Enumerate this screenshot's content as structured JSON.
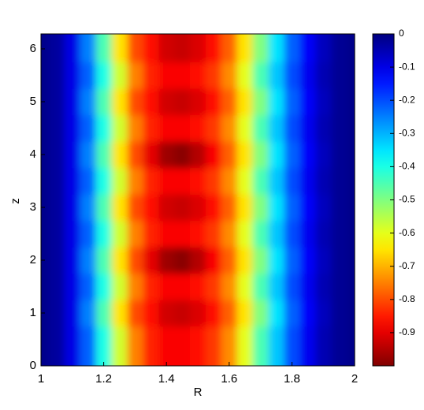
{
  "chart_data": {
    "type": "heatmap",
    "xlabel": "R",
    "ylabel": "z",
    "x": [
      1.0,
      1.05,
      1.1,
      1.15,
      1.2,
      1.25,
      1.3,
      1.35,
      1.4,
      1.45,
      1.5,
      1.55,
      1.6,
      1.65,
      1.7,
      1.75,
      1.8,
      1.85,
      1.9,
      1.95,
      2.0
    ],
    "y": [
      0,
      0.5,
      1,
      1.5,
      2,
      2.5,
      3,
      3.5,
      4,
      4.5,
      5,
      5.5,
      6
    ],
    "z": [
      [
        -0.01,
        -0.03,
        -0.1,
        -0.22,
        -0.4,
        -0.58,
        -0.75,
        -0.84,
        -0.88,
        -0.88,
        -0.86,
        -0.82,
        -0.74,
        -0.6,
        -0.45,
        -0.32,
        -0.2,
        -0.11,
        -0.05,
        -0.02,
        -0.01
      ],
      [
        -0.01,
        -0.03,
        -0.1,
        -0.22,
        -0.4,
        -0.58,
        -0.75,
        -0.84,
        -0.88,
        -0.88,
        -0.86,
        -0.82,
        -0.74,
        -0.6,
        -0.45,
        -0.32,
        -0.2,
        -0.11,
        -0.05,
        -0.02,
        -0.01
      ],
      [
        -0.01,
        -0.03,
        -0.1,
        -0.25,
        -0.45,
        -0.65,
        -0.8,
        -0.86,
        -0.92,
        -0.93,
        -0.91,
        -0.86,
        -0.78,
        -0.65,
        -0.5,
        -0.35,
        -0.22,
        -0.12,
        -0.06,
        -0.02,
        -0.01
      ],
      [
        -0.01,
        -0.03,
        -0.1,
        -0.22,
        -0.4,
        -0.58,
        -0.75,
        -0.84,
        -0.88,
        -0.88,
        -0.86,
        -0.82,
        -0.74,
        -0.6,
        -0.45,
        -0.32,
        -0.2,
        -0.11,
        -0.05,
        -0.02,
        -0.01
      ],
      [
        -0.01,
        -0.03,
        -0.1,
        -0.25,
        -0.45,
        -0.65,
        -0.8,
        -0.9,
        -0.97,
        -0.99,
        -0.95,
        -0.88,
        -0.78,
        -0.65,
        -0.5,
        -0.35,
        -0.22,
        -0.12,
        -0.06,
        -0.02,
        -0.01
      ],
      [
        -0.01,
        -0.03,
        -0.1,
        -0.22,
        -0.4,
        -0.58,
        -0.75,
        -0.84,
        -0.88,
        -0.88,
        -0.86,
        -0.82,
        -0.74,
        -0.6,
        -0.45,
        -0.32,
        -0.2,
        -0.11,
        -0.05,
        -0.02,
        -0.01
      ],
      [
        -0.01,
        -0.03,
        -0.1,
        -0.25,
        -0.45,
        -0.65,
        -0.8,
        -0.86,
        -0.92,
        -0.93,
        -0.91,
        -0.86,
        -0.78,
        -0.65,
        -0.5,
        -0.35,
        -0.22,
        -0.12,
        -0.06,
        -0.02,
        -0.01
      ],
      [
        -0.01,
        -0.03,
        -0.1,
        -0.22,
        -0.4,
        -0.58,
        -0.75,
        -0.84,
        -0.88,
        -0.88,
        -0.86,
        -0.82,
        -0.74,
        -0.6,
        -0.45,
        -0.32,
        -0.2,
        -0.11,
        -0.05,
        -0.02,
        -0.01
      ],
      [
        -0.01,
        -0.03,
        -0.1,
        -0.25,
        -0.45,
        -0.65,
        -0.8,
        -0.9,
        -0.97,
        -0.99,
        -0.95,
        -0.88,
        -0.78,
        -0.65,
        -0.5,
        -0.35,
        -0.22,
        -0.12,
        -0.06,
        -0.02,
        -0.01
      ],
      [
        -0.01,
        -0.03,
        -0.1,
        -0.22,
        -0.4,
        -0.58,
        -0.75,
        -0.84,
        -0.88,
        -0.88,
        -0.86,
        -0.82,
        -0.74,
        -0.6,
        -0.45,
        -0.32,
        -0.2,
        -0.11,
        -0.05,
        -0.02,
        -0.01
      ],
      [
        -0.01,
        -0.03,
        -0.1,
        -0.25,
        -0.45,
        -0.65,
        -0.8,
        -0.86,
        -0.92,
        -0.93,
        -0.91,
        -0.86,
        -0.78,
        -0.65,
        -0.5,
        -0.35,
        -0.22,
        -0.12,
        -0.06,
        -0.02,
        -0.01
      ],
      [
        -0.01,
        -0.03,
        -0.1,
        -0.22,
        -0.4,
        -0.58,
        -0.75,
        -0.84,
        -0.88,
        -0.88,
        -0.86,
        -0.82,
        -0.74,
        -0.6,
        -0.45,
        -0.32,
        -0.2,
        -0.11,
        -0.05,
        -0.02,
        -0.01
      ],
      [
        -0.01,
        -0.03,
        -0.1,
        -0.25,
        -0.45,
        -0.65,
        -0.8,
        -0.86,
        -0.92,
        -0.93,
        -0.91,
        -0.86,
        -0.78,
        -0.65,
        -0.5,
        -0.35,
        -0.22,
        -0.12,
        -0.06,
        -0.02,
        -0.01
      ]
    ],
    "colormap": "jet_r",
    "clim": [
      -1,
      0
    ],
    "cticks": [
      0,
      -0.1,
      -0.2,
      -0.3,
      -0.4,
      -0.5,
      -0.6,
      -0.7,
      -0.8,
      -0.9
    ],
    "xlim": [
      1,
      2
    ],
    "xticks": [
      1,
      1.2,
      1.4,
      1.6,
      1.8,
      2
    ],
    "ylim": [
      0,
      6.2832
    ],
    "yticks": [
      0,
      1,
      2,
      3,
      4,
      5,
      6
    ]
  }
}
